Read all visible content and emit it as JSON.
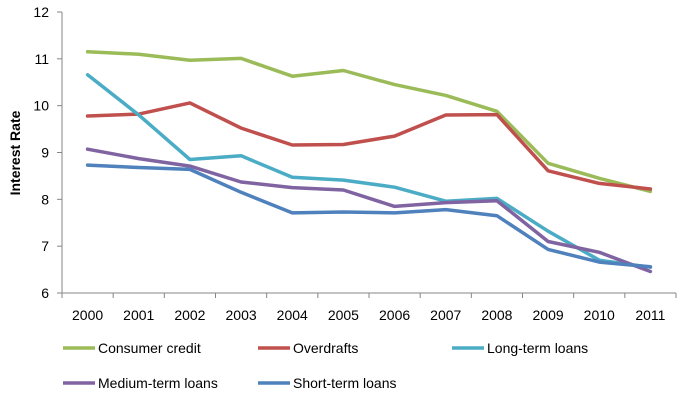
{
  "chart_data": {
    "type": "line",
    "title": "",
    "xlabel": "",
    "ylabel": "Interest Rate",
    "ylim": [
      6,
      12
    ],
    "yticks": [
      6,
      7,
      8,
      9,
      10,
      11,
      12
    ],
    "grid": false,
    "legend_position": "bottom",
    "categories": [
      "2000",
      "2001",
      "2002",
      "2003",
      "2004",
      "2005",
      "2006",
      "2007",
      "2008",
      "2009",
      "2010",
      "2011"
    ],
    "series": [
      {
        "name": "Consumer credit",
        "color": "#9BBB59",
        "values": [
          11.15,
          11.1,
          10.97,
          11.01,
          10.63,
          10.75,
          10.45,
          10.22,
          9.88,
          8.77,
          8.45,
          8.17
        ]
      },
      {
        "name": "Overdrafts",
        "color": "#C0504D",
        "values": [
          9.78,
          9.82,
          10.06,
          9.52,
          9.16,
          9.17,
          9.35,
          9.8,
          9.81,
          8.61,
          8.34,
          8.22
        ]
      },
      {
        "name": "Long-term loans",
        "color": "#4BACC6",
        "values": [
          10.66,
          9.8,
          8.85,
          8.93,
          8.47,
          8.41,
          8.26,
          7.96,
          8.02,
          7.32,
          6.7,
          6.55
        ]
      },
      {
        "name": "Medium-term loans",
        "color": "#8064A2",
        "values": [
          9.07,
          8.87,
          8.71,
          8.37,
          8.25,
          8.2,
          7.85,
          7.93,
          7.97,
          7.1,
          6.87,
          6.46
        ]
      },
      {
        "name": "Short-term loans",
        "color": "#4F81BD",
        "values": [
          8.73,
          8.68,
          8.64,
          8.15,
          7.71,
          7.73,
          7.71,
          7.78,
          7.65,
          6.93,
          6.66,
          6.56
        ]
      }
    ]
  }
}
